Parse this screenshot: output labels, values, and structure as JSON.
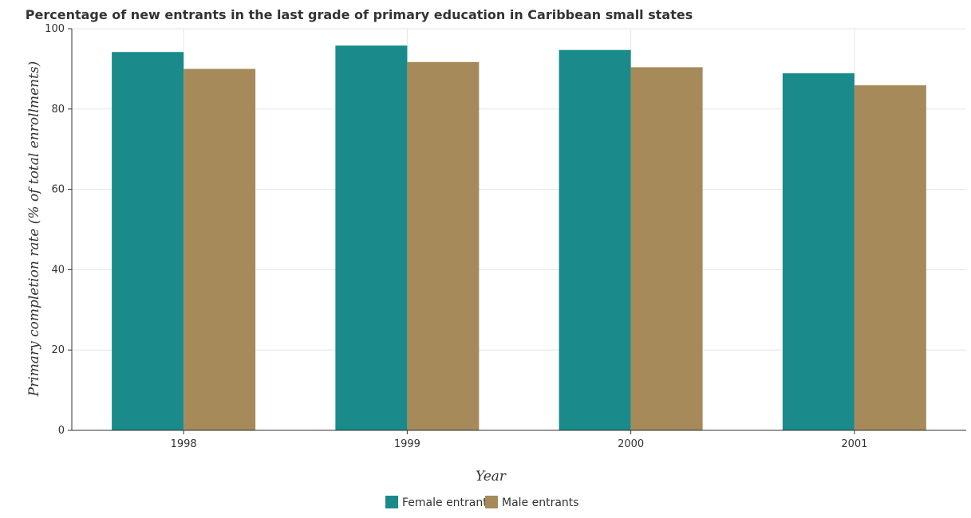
{
  "chart_data": {
    "type": "bar",
    "title": "Percentage of new entrants in the last grade of primary education in Caribbean small states",
    "xlabel": "Year",
    "ylabel": "Primary completion rate (% of total enrollments)",
    "categories": [
      "1998",
      "1999",
      "2000",
      "2001"
    ],
    "series": [
      {
        "name": "Female entrants",
        "color": "#1a8a8a",
        "values": [
          94.2,
          95.8,
          94.7,
          88.9
        ]
      },
      {
        "name": "Male entrants",
        "color": "#a68a5a",
        "values": [
          90.0,
          91.7,
          90.4,
          85.9
        ]
      }
    ],
    "ylim": [
      0,
      100
    ],
    "yticks": [
      0,
      20,
      40,
      60,
      80,
      100
    ],
    "grid": true,
    "legend_position": "bottom-center"
  }
}
